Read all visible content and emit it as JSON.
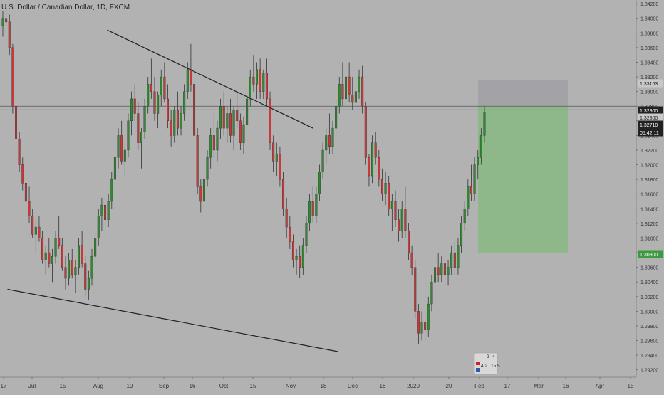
{
  "header": {
    "title": "U.S. Dollar / Canadian Dollar, 1D, FXCM"
  },
  "colors": {
    "background": "#b2b2b2",
    "up": "#2e8b2e",
    "down": "#c83a3a",
    "wick": "#333333",
    "trendline": "#222222",
    "target_zone": "#8fb88a",
    "stop_zone": "#a3a3a7",
    "price_tag": "#222222",
    "target_tag": "#3f9a3f"
  },
  "chart_data": {
    "type": "candlestick",
    "title": "U.S. Dollar / Canadian Dollar, 1D, FXCM",
    "ylim": [
      1.291,
      1.3425
    ],
    "y_ticks": [
      "1.34200",
      "1.34000",
      "1.33800",
      "1.33600",
      "1.33400",
      "1.33200",
      "1.33000",
      "1.32800",
      "1.32600",
      "1.32400",
      "1.32200",
      "1.32000",
      "1.31800",
      "1.31600",
      "1.31400",
      "1.31200",
      "1.31000",
      "1.30800",
      "1.30600",
      "1.30400",
      "1.30200",
      "1.30000",
      "1.29800",
      "1.29600",
      "1.29400",
      "1.29200"
    ],
    "x_ticks": [
      "17",
      "Jul",
      "15",
      "Aug",
      "19",
      "Sep",
      "16",
      "Oct",
      "15",
      "Nov",
      "18",
      "Dec",
      "16",
      "2020",
      "20",
      "Feb",
      "17",
      "Mar",
      "16",
      "Apr",
      "15"
    ],
    "price_tags": [
      {
        "label": "1.33163",
        "value": 1.33163,
        "style": "plain"
      },
      {
        "label": "1.32800",
        "value": 1.328,
        "style": "dark"
      },
      {
        "label": "1.32800",
        "value": 1.32752,
        "style": "plain"
      },
      {
        "label": "1.32710",
        "value": 1.3271,
        "style": "dark"
      },
      {
        "label": "05:42:11",
        "value": 1.326,
        "style": "dark"
      },
      {
        "label": "1.30800",
        "value": 1.308,
        "style": "green"
      }
    ],
    "position": {
      "type": "short",
      "entry": 1.328,
      "stop": 1.33163,
      "target": 1.308
    },
    "current_price": 1.3271,
    "trendlines": [
      {
        "name": "upper",
        "from": {
          "date": "2019-09-02",
          "price": 1.3384
        },
        "to": {
          "date": "2020-02-14",
          "price": 1.325
        }
      },
      {
        "name": "lower",
        "from": {
          "date": "2019-06-14",
          "price": 1.303
        },
        "to": {
          "date": "2020-03-05",
          "price": 1.2945
        }
      }
    ],
    "event_badges": [
      "2",
      "4",
      "4.2",
      "15.5"
    ],
    "candles": [
      [
        1.339,
        1.341,
        1.3375,
        1.34
      ],
      [
        1.34,
        1.342,
        1.339,
        1.3395
      ],
      [
        1.3395,
        1.3405,
        1.335,
        1.336
      ],
      [
        1.336,
        1.3365,
        1.327,
        1.328
      ],
      [
        1.328,
        1.329,
        1.322,
        1.3235
      ],
      [
        1.3235,
        1.3245,
        1.319,
        1.32
      ],
      [
        1.32,
        1.321,
        1.3165,
        1.3175
      ],
      [
        1.3175,
        1.319,
        1.314,
        1.315
      ],
      [
        1.315,
        1.317,
        1.312,
        1.313
      ],
      [
        1.313,
        1.314,
        1.31,
        1.3105
      ],
      [
        1.3105,
        1.3125,
        1.308,
        1.3115
      ],
      [
        1.3115,
        1.313,
        1.3095,
        1.31
      ],
      [
        1.31,
        1.311,
        1.3065,
        1.307
      ],
      [
        1.307,
        1.309,
        1.305,
        1.308
      ],
      [
        1.308,
        1.31,
        1.306,
        1.3065
      ],
      [
        1.3065,
        1.3085,
        1.304,
        1.3075
      ],
      [
        1.3075,
        1.311,
        1.3065,
        1.31
      ],
      [
        1.31,
        1.313,
        1.3085,
        1.309
      ],
      [
        1.309,
        1.31,
        1.3055,
        1.306
      ],
      [
        1.306,
        1.3075,
        1.303,
        1.3045
      ],
      [
        1.3045,
        1.308,
        1.3035,
        1.307
      ],
      [
        1.307,
        1.3085,
        1.3045,
        1.305
      ],
      [
        1.305,
        1.307,
        1.3025,
        1.306
      ],
      [
        1.306,
        1.31,
        1.305,
        1.309
      ],
      [
        1.309,
        1.311,
        1.306,
        1.3065
      ],
      [
        1.3065,
        1.3075,
        1.302,
        1.303
      ],
      [
        1.303,
        1.3055,
        1.3015,
        1.3045
      ],
      [
        1.3045,
        1.3085,
        1.3035,
        1.3075
      ],
      [
        1.3075,
        1.311,
        1.3065,
        1.31
      ],
      [
        1.31,
        1.314,
        1.309,
        1.313
      ],
      [
        1.313,
        1.3155,
        1.311,
        1.3145
      ],
      [
        1.3145,
        1.317,
        1.312,
        1.3125
      ],
      [
        1.3125,
        1.316,
        1.3115,
        1.315
      ],
      [
        1.315,
        1.319,
        1.314,
        1.318
      ],
      [
        1.318,
        1.322,
        1.317,
        1.321
      ],
      [
        1.321,
        1.325,
        1.3195,
        1.324
      ],
      [
        1.324,
        1.326,
        1.32,
        1.3205
      ],
      [
        1.3205,
        1.323,
        1.3185,
        1.322
      ],
      [
        1.322,
        1.327,
        1.321,
        1.326
      ],
      [
        1.326,
        1.33,
        1.324,
        1.329
      ],
      [
        1.329,
        1.331,
        1.326,
        1.327
      ],
      [
        1.327,
        1.3285,
        1.322,
        1.323
      ],
      [
        1.323,
        1.325,
        1.3195,
        1.3245
      ],
      [
        1.3245,
        1.329,
        1.3235,
        1.328
      ],
      [
        1.328,
        1.332,
        1.327,
        1.331
      ],
      [
        1.331,
        1.3345,
        1.329,
        1.33
      ],
      [
        1.33,
        1.332,
        1.326,
        1.327
      ],
      [
        1.327,
        1.33,
        1.325,
        1.3295
      ],
      [
        1.3295,
        1.333,
        1.328,
        1.332
      ],
      [
        1.332,
        1.334,
        1.3285,
        1.329
      ],
      [
        1.329,
        1.331,
        1.325,
        1.326
      ],
      [
        1.326,
        1.3275,
        1.3225,
        1.324
      ],
      [
        1.324,
        1.328,
        1.323,
        1.3275
      ],
      [
        1.3275,
        1.33,
        1.324,
        1.325
      ],
      [
        1.325,
        1.328,
        1.324,
        1.327
      ],
      [
        1.327,
        1.331,
        1.326,
        1.33
      ],
      [
        1.33,
        1.334,
        1.329,
        1.333
      ],
      [
        1.333,
        1.3365,
        1.33,
        1.331
      ],
      [
        1.331,
        1.333,
        1.323,
        1.324
      ],
      [
        1.324,
        1.325,
        1.316,
        1.317
      ],
      [
        1.317,
        1.318,
        1.3135,
        1.315
      ],
      [
        1.315,
        1.319,
        1.314,
        1.318
      ],
      [
        1.318,
        1.322,
        1.317,
        1.321
      ],
      [
        1.321,
        1.325,
        1.3195,
        1.324
      ],
      [
        1.324,
        1.327,
        1.321,
        1.322
      ],
      [
        1.322,
        1.326,
        1.3205,
        1.325
      ],
      [
        1.325,
        1.329,
        1.3235,
        1.328
      ],
      [
        1.328,
        1.33,
        1.324,
        1.325
      ],
      [
        1.325,
        1.328,
        1.323,
        1.327
      ],
      [
        1.327,
        1.329,
        1.323,
        1.324
      ],
      [
        1.324,
        1.328,
        1.322,
        1.3275
      ],
      [
        1.3275,
        1.33,
        1.325,
        1.326
      ],
      [
        1.326,
        1.327,
        1.322,
        1.323
      ],
      [
        1.323,
        1.3265,
        1.3215,
        1.3255
      ],
      [
        1.3255,
        1.33,
        1.3245,
        1.329
      ],
      [
        1.329,
        1.333,
        1.328,
        1.332
      ],
      [
        1.332,
        1.335,
        1.33,
        1.331
      ],
      [
        1.331,
        1.334,
        1.329,
        1.333
      ],
      [
        1.333,
        1.3345,
        1.329,
        1.33
      ],
      [
        1.33,
        1.333,
        1.329,
        1.3325
      ],
      [
        1.3325,
        1.3345,
        1.328,
        1.329
      ],
      [
        1.329,
        1.33,
        1.322,
        1.323
      ],
      [
        1.323,
        1.324,
        1.319,
        1.3205
      ],
      [
        1.3205,
        1.323,
        1.3185,
        1.3215
      ],
      [
        1.3215,
        1.3225,
        1.317,
        1.318
      ],
      [
        1.318,
        1.319,
        1.313,
        1.314
      ],
      [
        1.314,
        1.3155,
        1.31,
        1.3115
      ],
      [
        1.3115,
        1.313,
        1.3085,
        1.3095
      ],
      [
        1.3095,
        1.3105,
        1.306,
        1.307
      ],
      [
        1.307,
        1.3085,
        1.305,
        1.3075
      ],
      [
        1.3075,
        1.309,
        1.3045,
        1.306
      ],
      [
        1.306,
        1.31,
        1.305,
        1.309
      ],
      [
        1.309,
        1.313,
        1.308,
        1.312
      ],
      [
        1.312,
        1.316,
        1.311,
        1.315
      ],
      [
        1.315,
        1.317,
        1.312,
        1.313
      ],
      [
        1.313,
        1.317,
        1.312,
        1.316
      ],
      [
        1.316,
        1.32,
        1.315,
        1.319
      ],
      [
        1.319,
        1.323,
        1.318,
        1.322
      ],
      [
        1.322,
        1.325,
        1.32,
        1.324
      ],
      [
        1.324,
        1.327,
        1.3215,
        1.3225
      ],
      [
        1.3225,
        1.326,
        1.3215,
        1.325
      ],
      [
        1.325,
        1.329,
        1.324,
        1.328
      ],
      [
        1.328,
        1.332,
        1.327,
        1.331
      ],
      [
        1.331,
        1.334,
        1.328,
        1.329
      ],
      [
        1.329,
        1.333,
        1.328,
        1.332
      ],
      [
        1.332,
        1.334,
        1.3285,
        1.3295
      ],
      [
        1.3295,
        1.332,
        1.3275,
        1.3285
      ],
      [
        1.3285,
        1.331,
        1.327,
        1.33
      ],
      [
        1.33,
        1.333,
        1.329,
        1.332
      ],
      [
        1.332,
        1.3335,
        1.327,
        1.328
      ],
      [
        1.328,
        1.3285,
        1.32,
        1.321
      ],
      [
        1.321,
        1.3215,
        1.317,
        1.3185
      ],
      [
        1.3185,
        1.324,
        1.3175,
        1.323
      ],
      [
        1.323,
        1.3245,
        1.32,
        1.321
      ],
      [
        1.321,
        1.322,
        1.317,
        1.318
      ],
      [
        1.318,
        1.3195,
        1.315,
        1.316
      ],
      [
        1.316,
        1.319,
        1.3145,
        1.3175
      ],
      [
        1.3175,
        1.3185,
        1.313,
        1.314
      ],
      [
        1.314,
        1.316,
        1.311,
        1.315
      ],
      [
        1.315,
        1.3165,
        1.3115,
        1.3125
      ],
      [
        1.3125,
        1.314,
        1.3095,
        1.311
      ],
      [
        1.311,
        1.315,
        1.31,
        1.314
      ],
      [
        1.314,
        1.317,
        1.31,
        1.311
      ],
      [
        1.311,
        1.312,
        1.307,
        1.308
      ],
      [
        1.308,
        1.309,
        1.305,
        1.306
      ],
      [
        1.306,
        1.307,
        1.299,
        1.3
      ],
      [
        1.3,
        1.301,
        1.2955,
        1.297
      ],
      [
        1.297,
        1.3,
        1.296,
        1.2985
      ],
      [
        1.2985,
        1.2995,
        1.296,
        1.2975
      ],
      [
        1.2975,
        1.302,
        1.2965,
        1.301
      ],
      [
        1.301,
        1.305,
        1.3,
        1.304
      ],
      [
        1.304,
        1.307,
        1.303,
        1.306
      ],
      [
        1.306,
        1.308,
        1.304,
        1.305
      ],
      [
        1.305,
        1.3075,
        1.304,
        1.3065
      ],
      [
        1.3065,
        1.308,
        1.304,
        1.305
      ],
      [
        1.305,
        1.307,
        1.3035,
        1.306
      ],
      [
        1.306,
        1.309,
        1.305,
        1.308
      ],
      [
        1.308,
        1.3095,
        1.305,
        1.306
      ],
      [
        1.306,
        1.31,
        1.305,
        1.309
      ],
      [
        1.309,
        1.313,
        1.308,
        1.312
      ],
      [
        1.312,
        1.315,
        1.311,
        1.314
      ],
      [
        1.314,
        1.318,
        1.313,
        1.317
      ],
      [
        1.317,
        1.32,
        1.315,
        1.316
      ],
      [
        1.316,
        1.321,
        1.315,
        1.32
      ],
      [
        1.32,
        1.322,
        1.318,
        1.321
      ],
      [
        1.321,
        1.325,
        1.32,
        1.324
      ],
      [
        1.324,
        1.328,
        1.323,
        1.3271
      ]
    ]
  }
}
